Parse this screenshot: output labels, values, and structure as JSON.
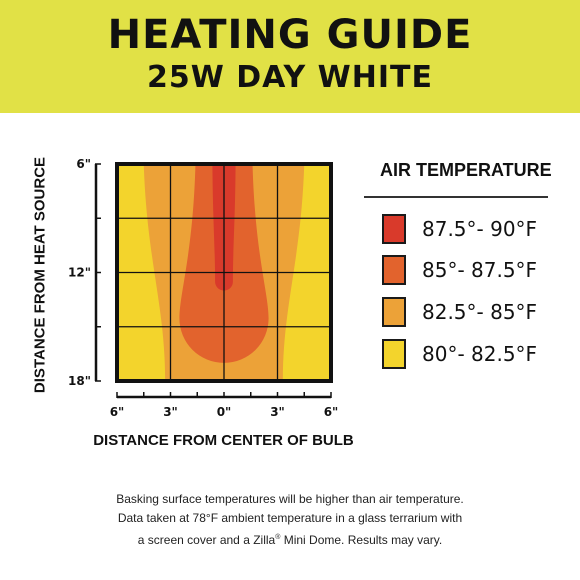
{
  "banner": {
    "title": "HEATING GUIDE",
    "subtitle": "25W DAY WHITE",
    "color": "#e1e146"
  },
  "chart_data": {
    "type": "heatmap",
    "title": "",
    "xlabel": "DISTANCE FROM CENTER OF BULB",
    "ylabel": "DISTANCE FROM HEAT SOURCE",
    "x_range": [
      -6,
      6
    ],
    "y_range": [
      6,
      18
    ],
    "x_ticks": [
      {
        "value": -6,
        "label": "6\""
      },
      {
        "value": -3,
        "label": "3\""
      },
      {
        "value": 0,
        "label": "0\""
      },
      {
        "value": 3,
        "label": "3\""
      },
      {
        "value": 6,
        "label": "6\""
      }
    ],
    "y_ticks": [
      {
        "value": 6,
        "label": "6\""
      },
      {
        "value": 12,
        "label": "12\""
      },
      {
        "value": 18,
        "label": "18\""
      }
    ],
    "grid": true,
    "legend_title": "AIR TEMPERATURE",
    "legend_position": "right",
    "zones": [
      {
        "name": "87.5°- 90°F",
        "color": "#d93a2b",
        "half_width_top": 0.65,
        "half_width_bottom": 0.5,
        "y_end": 13.0
      },
      {
        "name": "85°- 87.5°F",
        "color": "#e2632d",
        "half_width_top": 1.6,
        "half_width_bottom": 2.5,
        "y_end": 17.0
      },
      {
        "name": "82.5°- 85°F",
        "color": "#eca238",
        "half_width_top": 4.5,
        "half_width_bottom": 3.3,
        "y_end": 18
      },
      {
        "name": "80°- 82.5°F",
        "color": "#f3d42c"
      }
    ]
  },
  "footnote": {
    "line1": "Basking surface temperatures will be higher than air temperature.",
    "line2": "Data taken at 78°F ambient temperature in a glass terrarium with",
    "line3a": "a screen cover and a Zilla",
    "line3sup": "®",
    "line3b": " Mini Dome. Results may vary."
  }
}
